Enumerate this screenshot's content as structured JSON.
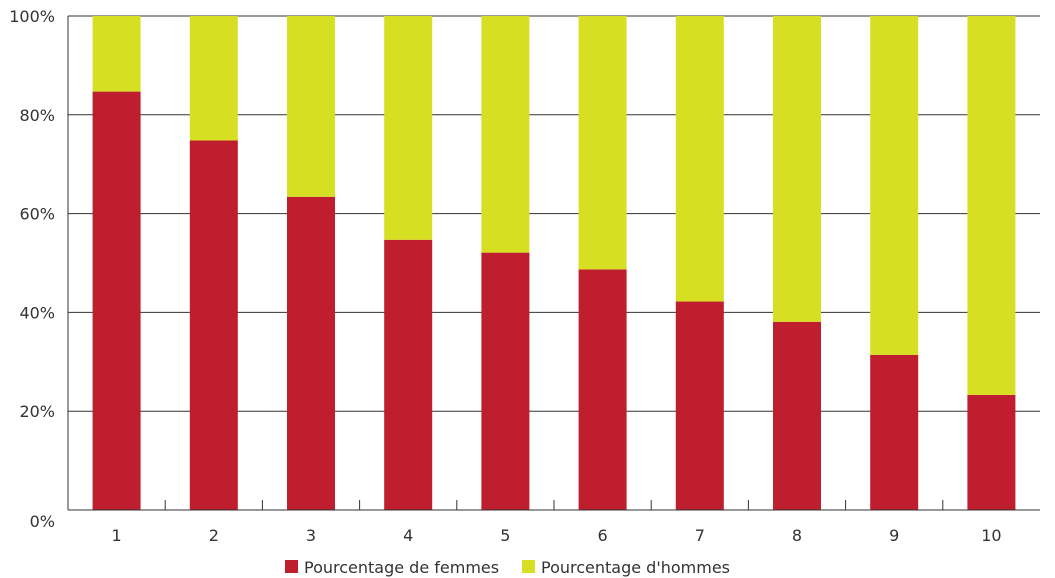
{
  "chart_data": {
    "type": "bar",
    "stacked": true,
    "title": "",
    "xlabel": "",
    "ylabel": "",
    "categories": [
      "1",
      "2",
      "3",
      "4",
      "5",
      "6",
      "7",
      "8",
      "9",
      "10"
    ],
    "y_tick_labels": [
      "0%",
      "20%",
      "40%",
      "60%",
      "80%",
      "100%"
    ],
    "ylim": [
      0,
      100
    ],
    "grid": "horizontal",
    "legend_position": "bottom",
    "series": [
      {
        "name": "Pourcentage de femmes",
        "color": "#be1e2d",
        "values": [
          84.7,
          74.8,
          63.4,
          54.7,
          52.1,
          48.7,
          42.2,
          38.1,
          31.4,
          23.3
        ]
      },
      {
        "name": "Pourcentage d'hommes",
        "color": "#d7df23",
        "values": [
          15.3,
          25.2,
          36.6,
          45.3,
          47.9,
          51.3,
          57.8,
          61.9,
          68.6,
          76.7
        ]
      }
    ]
  }
}
